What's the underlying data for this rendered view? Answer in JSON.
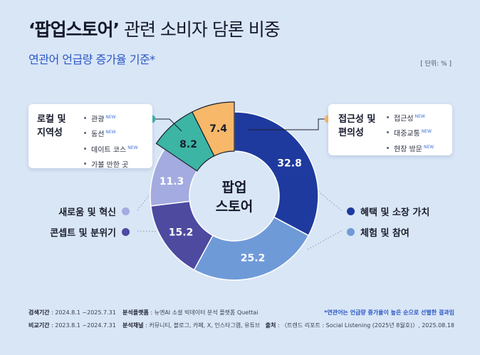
{
  "header": {
    "title_bold": "‘팝업스토어’",
    "title_rest": " 관련 소비자 담론 비중",
    "subtitle": "연관어 언급량 증가율 기준*",
    "unit": "[ 단위: % ]"
  },
  "center_label": [
    "팝업",
    "스토어"
  ],
  "colors": {
    "benefit": "#1e3a9e",
    "experience": "#6f9ad8",
    "concept": "#4d4a9f",
    "novelty": "#a3abe0",
    "local": "#3cb5a4",
    "access": "#f7b86a",
    "bg": "#d9e6f6"
  },
  "chart_data": {
    "type": "pie",
    "subtype": "donut",
    "title": "‘팝업스토어’ 관련 소비자 담론 비중",
    "unit": "%",
    "slices": [
      {
        "key": "benefit",
        "label": "혜택 및 소장 가치",
        "value": 32.8
      },
      {
        "key": "experience",
        "label": "체험 및 참여",
        "value": 25.2
      },
      {
        "key": "concept",
        "label": "콘셉트 및 분위기",
        "value": 15.2
      },
      {
        "key": "novelty",
        "label": "새로움 및 혁신",
        "value": 11.3
      },
      {
        "key": "local",
        "label": "로컬 및 지역성",
        "value": 8.2
      },
      {
        "key": "access",
        "label": "접근성 및 편의성",
        "value": 7.4
      }
    ]
  },
  "legend": {
    "novelty": "새로움 및 혁신",
    "concept": "콘셉트 및 분위기",
    "benefit": "혜택 및 소장 가치",
    "experience": "체험 및 참여"
  },
  "local_box": {
    "title": "로컬 및\n지역성",
    "items": [
      {
        "text": "관광",
        "tag": "NEW"
      },
      {
        "text": "동선",
        "tag": "NEW"
      },
      {
        "text": "데이트 코스",
        "tag": "NEW"
      },
      {
        "text": "가볼 만한 곳",
        "tag": ""
      }
    ]
  },
  "access_box": {
    "title": "접근성 및\n편의성",
    "items": [
      {
        "text": "접근성",
        "tag": "NEW"
      },
      {
        "text": "대중교통",
        "tag": "NEW"
      },
      {
        "text": "현장 방문",
        "tag": "NEW"
      }
    ]
  },
  "footer": {
    "search_period_label": "검색기간",
    "search_period": " : 2024.8.1 ~2025.7.31",
    "compare_period_label": "비교기간",
    "compare_period": " : 2023.8.1 ~2024.7.31",
    "platform_label": "분석플랫폼",
    "platform": " : 뉴엔AI 소셜 빅데이터 분석 플랫폼 Quettai",
    "channel_label": "분석채널",
    "channel": " : 커뮤니티, 블로그, 카페, X, 인스타그램, 유튜브",
    "note": "*연관어는 언급량 증가율이 높은 순으로 선별한 결과임",
    "source_label": "출처",
    "source": " : 〈트렌드 리포트 : Social Listening (2025년 8월호)〉, 2025.08.18"
  }
}
